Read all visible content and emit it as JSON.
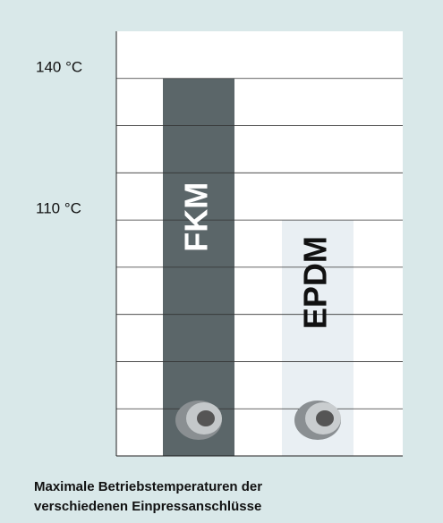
{
  "chart_data": {
    "type": "bar",
    "title": [
      "Maximale Betriebstemperaturen der",
      "verschiedenen Einpressanschlüsse"
    ],
    "categories": [
      "FKM",
      "EPDM"
    ],
    "values": [
      140,
      110
    ],
    "colors": [
      "#5b6669",
      "#e9eff3"
    ],
    "ylim": [
      60,
      150
    ],
    "yticks": [
      {
        "value": 70,
        "label": null
      },
      {
        "value": 80,
        "label": null
      },
      {
        "value": 90,
        "label": null
      },
      {
        "value": 100,
        "label": null
      },
      {
        "value": 110,
        "label": "110 °C"
      },
      {
        "value": 120,
        "label": null
      },
      {
        "value": 130,
        "label": null
      },
      {
        "value": 140,
        "label": "140 °C"
      }
    ],
    "grid": true
  }
}
